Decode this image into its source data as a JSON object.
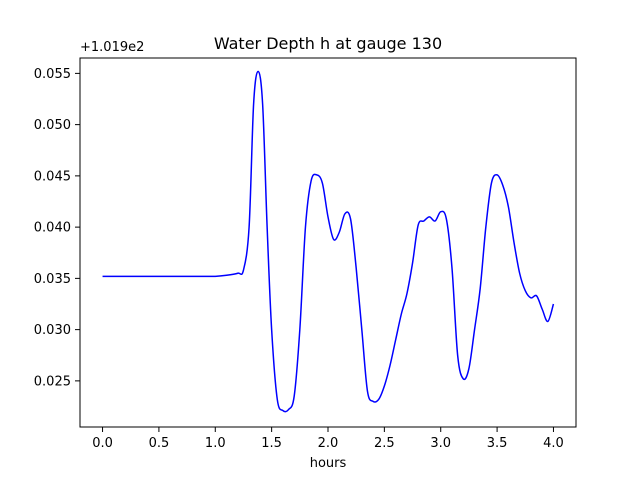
{
  "chart_data": {
    "type": "line",
    "title": "Water Depth h at gauge 130",
    "xlabel": "hours",
    "ylabel": "",
    "y_offset_label": "+1.019e2",
    "xlim": [
      -0.2,
      4.2
    ],
    "ylim": [
      0.0205,
      0.0565
    ],
    "xticks": [
      0.0,
      0.5,
      1.0,
      1.5,
      2.0,
      2.5,
      3.0,
      3.5,
      4.0
    ],
    "xtick_labels": [
      "0.0",
      "0.5",
      "1.0",
      "1.5",
      "2.0",
      "2.5",
      "3.0",
      "3.5",
      "4.0"
    ],
    "yticks": [
      0.025,
      0.03,
      0.035,
      0.04,
      0.045,
      0.05,
      0.055
    ],
    "ytick_labels": [
      "0.025",
      "0.030",
      "0.035",
      "0.040",
      "0.045",
      "0.050",
      "0.055"
    ],
    "grid": false,
    "series": [
      {
        "color": "#0000ff",
        "x": [
          0.0,
          0.3,
          0.6,
          0.9,
          1.0,
          1.1,
          1.2,
          1.25,
          1.3,
          1.34,
          1.38,
          1.42,
          1.46,
          1.5,
          1.55,
          1.6,
          1.65,
          1.7,
          1.75,
          1.8,
          1.85,
          1.9,
          1.95,
          2.0,
          2.05,
          2.1,
          2.15,
          2.2,
          2.25,
          2.3,
          2.35,
          2.4,
          2.45,
          2.5,
          2.55,
          2.6,
          2.65,
          2.7,
          2.75,
          2.8,
          2.85,
          2.9,
          2.95,
          3.0,
          3.05,
          3.1,
          3.15,
          3.2,
          3.25,
          3.3,
          3.35,
          3.4,
          3.45,
          3.5,
          3.55,
          3.6,
          3.65,
          3.7,
          3.75,
          3.8,
          3.85,
          3.9,
          3.95,
          4.0
        ],
        "y": [
          0.0352,
          0.0352,
          0.0352,
          0.0352,
          0.0352,
          0.0353,
          0.0355,
          0.0358,
          0.04,
          0.052,
          0.0552,
          0.052,
          0.04,
          0.03,
          0.0232,
          0.0221,
          0.0222,
          0.0235,
          0.03,
          0.04,
          0.0445,
          0.0451,
          0.0443,
          0.041,
          0.0388,
          0.0395,
          0.0413,
          0.0408,
          0.036,
          0.03,
          0.024,
          0.023,
          0.0232,
          0.0245,
          0.0265,
          0.029,
          0.0315,
          0.0335,
          0.0365,
          0.0402,
          0.0406,
          0.041,
          0.0406,
          0.0415,
          0.0408,
          0.036,
          0.0275,
          0.0252,
          0.0262,
          0.03,
          0.034,
          0.04,
          0.0443,
          0.0451,
          0.0441,
          0.042,
          0.0385,
          0.0355,
          0.0338,
          0.0331,
          0.0333,
          0.032,
          0.0308,
          0.0325
        ]
      }
    ]
  }
}
